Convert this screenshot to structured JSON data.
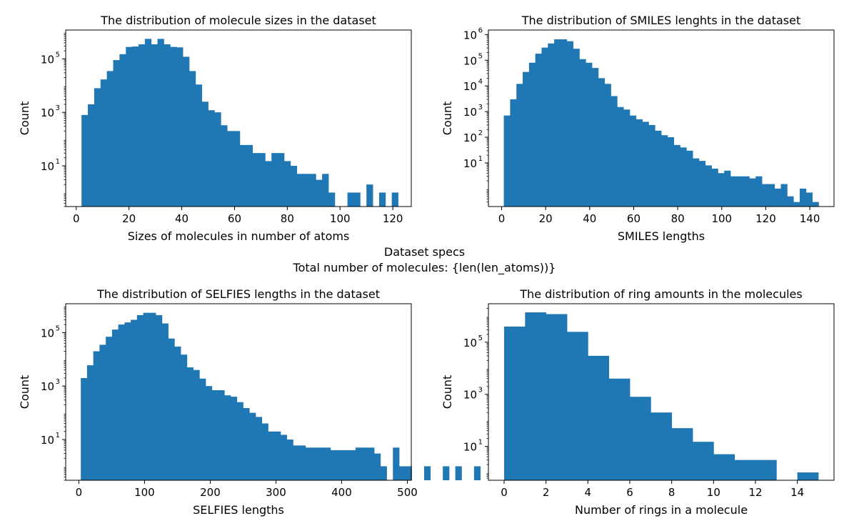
{
  "suptitle": {
    "line1": "Dataset specs",
    "line2": "Total number of molecules: {len(len_atoms))}"
  },
  "style": {
    "bar_color": "#1f77b4"
  },
  "chart_data": [
    {
      "type": "bar",
      "title": "The distribution of molecule sizes in the dataset",
      "xlabel": "Sizes of molecules in number of atoms",
      "ylabel": "Count",
      "yscale": "log",
      "xlim": [
        -4,
        127
      ],
      "ylim": [
        0.3,
        1200000
      ],
      "xticks": [
        0,
        20,
        40,
        60,
        80,
        100,
        120
      ],
      "yticks": [
        10,
        1000,
        100000
      ],
      "ytick_labels": [
        [
          "10",
          "1"
        ],
        [
          "10",
          "3"
        ],
        [
          "10",
          "5"
        ]
      ],
      "bins_start": 2,
      "bin_width": 2.4,
      "values": [
        800,
        2000,
        8000,
        17000,
        35000,
        90000,
        150000,
        280000,
        290000,
        350000,
        560000,
        350000,
        560000,
        350000,
        280000,
        270000,
        120000,
        35000,
        11000,
        2500,
        1200,
        1000,
        330,
        200,
        200,
        60,
        60,
        30,
        30,
        15,
        30,
        30,
        15,
        10,
        5,
        5,
        5,
        3,
        5,
        1,
        0,
        0,
        1,
        1,
        0,
        2,
        0,
        1,
        0,
        1
      ]
    },
    {
      "type": "bar",
      "title": "The distribution of SMILES lenghts in the dataset",
      "xlabel": "SMILES lengths",
      "ylabel": "Count",
      "yscale": "log",
      "xlim": [
        -6,
        151
      ],
      "ylim": [
        0.2,
        1500000
      ],
      "xticks": [
        0,
        20,
        40,
        60,
        80,
        100,
        120,
        140
      ],
      "yticks": [
        10,
        100,
        1000,
        10000,
        100000,
        1000000
      ],
      "ytick_labels": [
        [
          "10",
          "1"
        ],
        [
          "10",
          "2"
        ],
        [
          "10",
          "3"
        ],
        [
          "10",
          "4"
        ],
        [
          "10",
          "5"
        ],
        [
          "10",
          "6"
        ]
      ],
      "bins_start": 1,
      "bin_width": 2.86,
      "values": [
        700,
        3000,
        12000,
        35000,
        80000,
        180000,
        310000,
        450000,
        650000,
        650000,
        550000,
        280000,
        110000,
        80000,
        50000,
        20000,
        12000,
        4000,
        1500,
        1200,
        700,
        500,
        400,
        300,
        180,
        120,
        100,
        50,
        40,
        30,
        15,
        12,
        8,
        6,
        4,
        5,
        3,
        3,
        3,
        2.5,
        3,
        1.5,
        1.5,
        1,
        1.5,
        0.5,
        0.3,
        1,
        0.7,
        0.3
      ]
    },
    {
      "type": "bar",
      "title": "The distribution of SELFIES lengths in the dataset",
      "xlabel": "SELFIES lengths",
      "ylabel": "Count",
      "yscale": "log",
      "xlim": [
        -20,
        506
      ],
      "ylim": [
        0.3,
        1200000
      ],
      "xticks": [
        0,
        100,
        200,
        300,
        400,
        500
      ],
      "yticks": [
        10,
        1000,
        100000
      ],
      "ytick_labels": [
        [
          "10",
          "1"
        ],
        [
          "10",
          "3"
        ],
        [
          "10",
          "5"
        ]
      ],
      "bins_start": 3,
      "bin_width": 9.5,
      "values": [
        2000,
        6000,
        20000,
        35000,
        70000,
        130000,
        200000,
        240000,
        300000,
        450000,
        550000,
        550000,
        450000,
        220000,
        60000,
        30000,
        15000,
        5000,
        4000,
        1900,
        1000,
        700,
        700,
        450,
        400,
        250,
        150,
        100,
        70,
        40,
        20,
        20,
        15,
        10,
        6,
        6,
        5,
        5,
        5,
        5,
        4,
        4,
        4,
        4,
        5,
        5,
        5,
        3,
        1,
        0,
        5,
        1,
        1,
        0,
        0,
        1,
        0,
        0,
        1,
        0,
        1,
        0,
        0,
        1
      ]
    },
    {
      "type": "bar",
      "title": "The distribution of ring amounts in the molecules",
      "xlabel": "Number of rings in a molecule",
      "ylabel": "Count",
      "yscale": "log",
      "xlim": [
        -0.75,
        15.75
      ],
      "ylim": [
        0.5,
        3000000
      ],
      "xticks": [
        0,
        2,
        4,
        6,
        8,
        10,
        12,
        14
      ],
      "yticks": [
        10,
        1000,
        100000
      ],
      "ytick_labels": [
        [
          "10",
          "1"
        ],
        [
          "10",
          "3"
        ],
        [
          "10",
          "5"
        ]
      ],
      "bins_start": 0,
      "bin_width": 1,
      "values": [
        400000,
        1400000,
        1200000,
        250000,
        30000,
        4000,
        800,
        200,
        50,
        15,
        5,
        3,
        3,
        0,
        1
      ]
    }
  ]
}
